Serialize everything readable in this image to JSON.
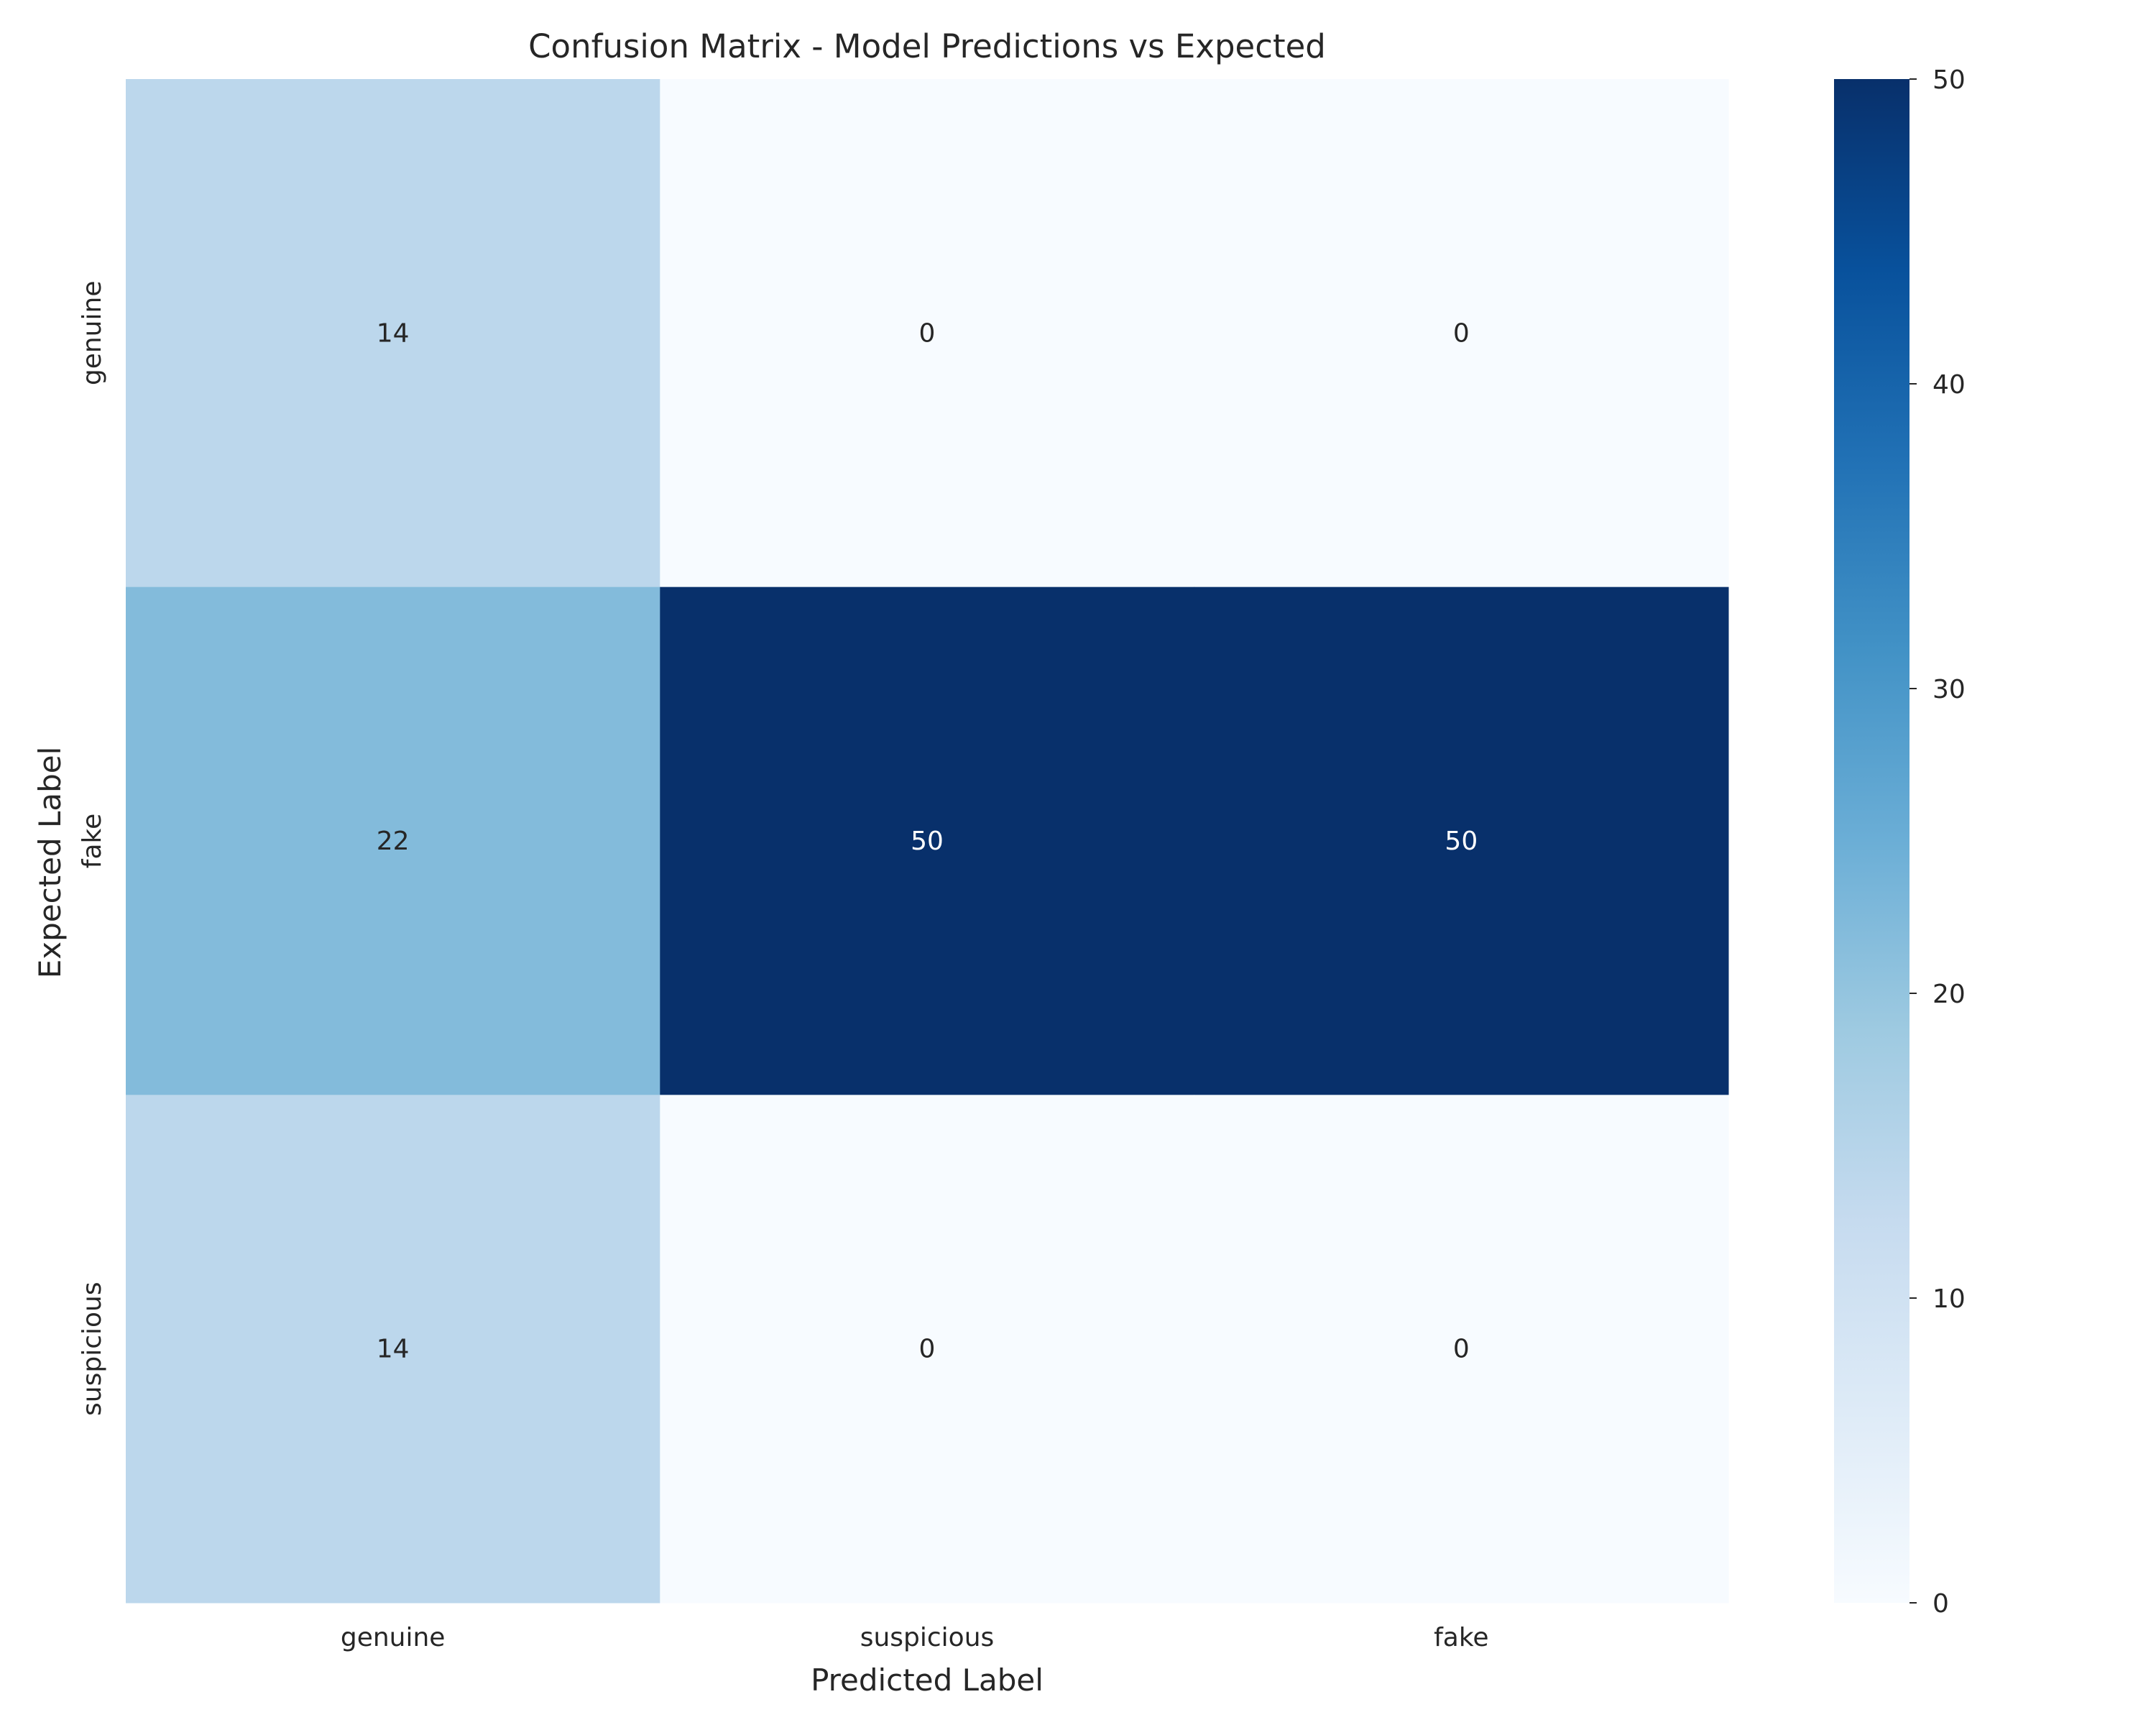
{
  "chart_data": {
    "type": "heatmap",
    "title": "Confusion Matrix - Model Predictions vs Expected",
    "xlabel": "Predicted Label",
    "ylabel": "Expected Label",
    "x_categories": [
      "genuine",
      "suspicious",
      "fake"
    ],
    "y_categories": [
      "genuine",
      "fake",
      "suspicious"
    ],
    "values": [
      [
        14,
        0,
        0
      ],
      [
        22,
        50,
        50
      ],
      [
        14,
        0,
        0
      ]
    ],
    "colorbar": {
      "min": 0,
      "max": 50,
      "ticks": [
        0,
        10,
        20,
        30,
        40,
        50
      ],
      "colormap": "Blues"
    },
    "grid": false
  }
}
